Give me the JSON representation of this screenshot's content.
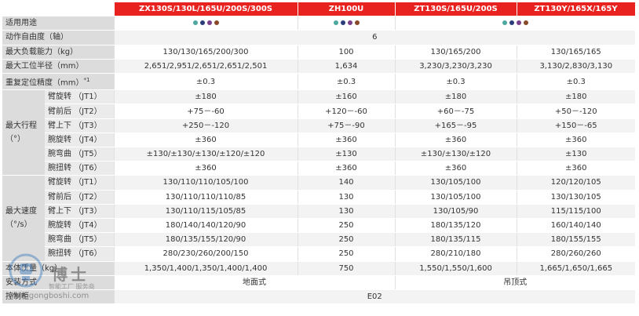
{
  "header": {
    "col1": "ZX130S/130L/165U/200S/300S",
    "col2": "ZH100U",
    "col3": "ZT130S/165U/200S",
    "col4": "ZT130Y/165X/165Y"
  },
  "rows": {
    "applications": {
      "label": "适用用途"
    },
    "dof": {
      "label": "动作自由度（轴）",
      "value": "6"
    },
    "payload": {
      "label": "最大负载能力（kg）",
      "v1": "130/130/165/200/300",
      "v2": "100",
      "v3": "130/165/200",
      "v4": "130/165/165"
    },
    "reach": {
      "label": "最大工位半径（mm）",
      "v1": "2,651/2,951/2,651/2,651/2,501",
      "v2": "1,634",
      "v3": "3,230/3,230/3,230",
      "v4": "3,130/2,830/3,130"
    },
    "repeat": {
      "label": "重复定位精度（mm）",
      "note": "*1",
      "v1": "±0.3",
      "v2": "±0.3",
      "v3": "±0.3",
      "v4": "±0.3"
    },
    "stroke_group": {
      "line1": "最大行程",
      "line2": "（°）"
    },
    "stroke": [
      {
        "axis": "臂旋转",
        "code": "（JT1）",
        "v1": "±180",
        "v2": "±160",
        "v3": "±180",
        "v4": "±180"
      },
      {
        "axis": "臂前后",
        "code": "（JT2）",
        "v1": "+75－-60",
        "v2": "+120－-60",
        "v3": "+60－-75",
        "v4": "+50－-120"
      },
      {
        "axis": "臂上下",
        "code": "（JT3）",
        "v1": "+250－-120",
        "v2": "+75－-90",
        "v3": "+165－-95",
        "v4": "+150－-65"
      },
      {
        "axis": "腕旋转",
        "code": "（JT4）",
        "v1": "±360",
        "v2": "±360",
        "v3": "±360",
        "v4": "±360"
      },
      {
        "axis": "腕弯曲",
        "code": "（JT5）",
        "v1": "±130/±130/±130/±120/±120",
        "v2": "±130",
        "v3": "±130/±130/±120",
        "v4": "±130"
      },
      {
        "axis": "腕扭转",
        "code": "（JT6）",
        "v1": "±360",
        "v2": "±360",
        "v3": "±360",
        "v4": "±360"
      }
    ],
    "speed_group": {
      "line1": "最大速度",
      "line2": "（°/s）"
    },
    "speed": [
      {
        "axis": "臂旋转",
        "code": "（JT1）",
        "v1": "130/110/110/105/100",
        "v2": "140",
        "v3": "130/105/100",
        "v4": "120/120/105"
      },
      {
        "axis": "臂前后",
        "code": "（JT2）",
        "v1": "130/110/110/110/85",
        "v2": "130",
        "v3": "130/105/100",
        "v4": "130/130/105"
      },
      {
        "axis": "臂上下",
        "code": "（JT3）",
        "v1": "130/110/115/105/85",
        "v2": "130",
        "v3": "130/105/90",
        "v4": "115/115/100"
      },
      {
        "axis": "腕旋转",
        "code": "（JT4）",
        "v1": "180/140/140/120/90",
        "v2": "250",
        "v3": "180/135/120",
        "v4": "160/140/140"
      },
      {
        "axis": "腕弯曲",
        "code": "（JT5）",
        "v1": "180/135/155/120/90",
        "v2": "250",
        "v3": "180/135/115",
        "v4": "180/155/155"
      },
      {
        "axis": "腕扭转",
        "code": "（JT6）",
        "v1": "280/230/260/200/150",
        "v2": "250",
        "v3": "280/210/180",
        "v4": "280/260/260"
      }
    ],
    "weight": {
      "label": "本体质量（kg）",
      "v1": "1,350/1,400/1,350/1,400/1,400",
      "v2": "750",
      "v3": "1,550/1,550/1,600",
      "v4": "1,665/1,650/1,665"
    },
    "install": {
      "label": "安装方式",
      "floor": "地面式",
      "ceiling": "吊顶式"
    },
    "controller": {
      "label": "控制柜",
      "value": "E02"
    }
  },
  "dot_colors": {
    "teal": "#4fa8a0",
    "navy": "#2c3e7a",
    "purple": "#7a3e8a",
    "brown": "#8a4a2a"
  },
  "watermark": {
    "name": "博士",
    "tagline": "智能工厂 服务商",
    "url": "www.gongboshi.com"
  }
}
